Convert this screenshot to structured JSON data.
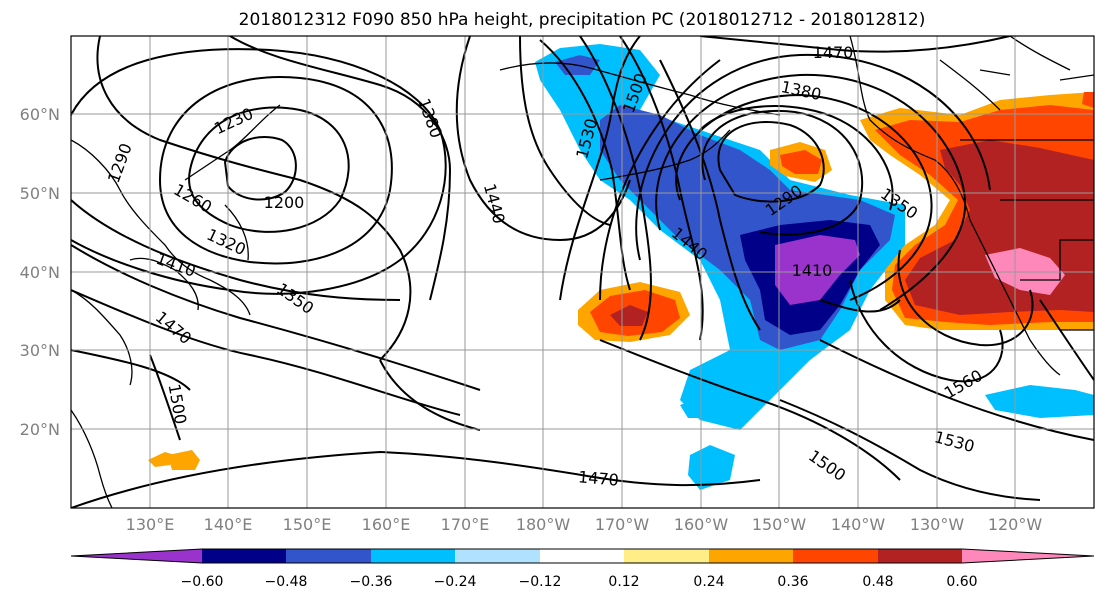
{
  "figure": {
    "title": "2018012312 F090 850 hPa height, precipitation PC (2018012712 - 2018012812)"
  },
  "axes": {
    "lat_labels": [
      "60°N",
      "50°N",
      "40°N",
      "30°N",
      "20°N"
    ],
    "lon_labels": [
      "130°E",
      "140°E",
      "150°E",
      "160°E",
      "170°E",
      "180°W",
      "170°W",
      "160°W",
      "150°W",
      "140°W",
      "130°W",
      "120°W"
    ],
    "grid": true
  },
  "contour_labels": [
    "1470",
    "1380",
    "1500",
    "1530",
    "1230",
    "1290",
    "1260",
    "1200",
    "1320",
    "1410",
    "1350",
    "1440",
    "1290",
    "1350",
    "1410",
    "1440",
    "1560",
    "1530",
    "1500",
    "1470",
    "1500",
    "1380",
    "1470"
  ],
  "colorbar": {
    "ticks": [
      "−0.60",
      "−0.48",
      "−0.36",
      "−0.24",
      "−0.12",
      "0.12",
      "0.24",
      "0.36",
      "0.48",
      "0.60"
    ],
    "colors": [
      "#9933cc",
      "#000088",
      "#3355cc",
      "#00bfff",
      "#b0e2ff",
      "#ffffff",
      "#ffee88",
      "#ffa500",
      "#ff4500",
      "#b22222",
      "#ff88bb"
    ]
  }
}
